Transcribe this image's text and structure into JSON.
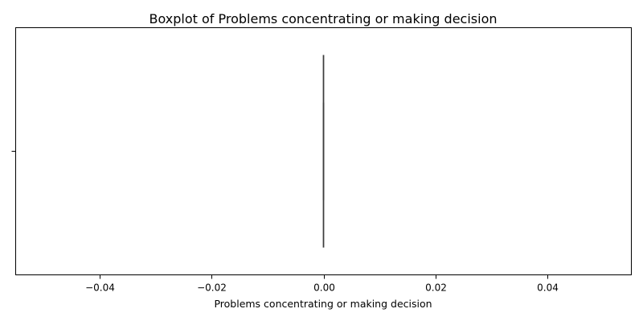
{
  "chart_data": {
    "type": "box",
    "title": "Boxplot of Problems concentrating or making decision",
    "xlabel": "Problems concentrating or making decision",
    "ylabel": "",
    "xlim": [
      -0.055,
      0.055
    ],
    "x_ticks": [
      -0.04,
      -0.02,
      0.0,
      0.02,
      0.04
    ],
    "x_tick_labels": [
      "−0.04",
      "−0.02",
      "0.00",
      "0.02",
      "0.04"
    ],
    "grid": false,
    "legend": "none",
    "boxes": [
      {
        "min": 0,
        "q1": 0,
        "median": 0,
        "q3": 0,
        "max": 0
      }
    ],
    "colors": {
      "line": "#3d3d3d",
      "axes": "#000000"
    }
  }
}
